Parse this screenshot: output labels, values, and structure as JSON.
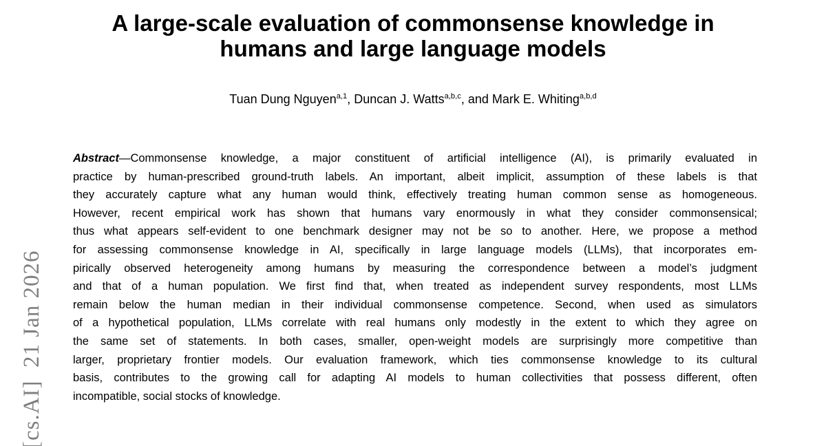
{
  "page": {
    "background_color": "#ffffff",
    "text_color": "#000000"
  },
  "watermark": {
    "text": "[cs.AI]  21 Jan 2026",
    "color": "#7f7f7f"
  },
  "title": {
    "line1": "A large-scale evaluation of commonsense knowledge in",
    "line2": "humans and large language models"
  },
  "authors": [
    {
      "name": "Tuan Dung Nguyen",
      "sup": "a,1",
      "sep": ", "
    },
    {
      "name": "Duncan J. Watts",
      "sup": "a,b,c",
      "sep": ", and "
    },
    {
      "name": "Mark E. Whiting",
      "sup": "a,b,d",
      "sep": ""
    }
  ],
  "abstract": {
    "label": "Abstract",
    "line1_rest": "—Commonsense knowledge, a major constituent of artificial intelligence (AI), is primarily evaluated in",
    "lines": [
      "practice by human-prescribed ground-truth labels. An important, albeit implicit, assumption of these labels is that",
      "they accurately capture what any human would think, effectively treating human common sense as homogeneous.",
      "However, recent empirical work has shown that humans vary enormously in what they consider commonsensical;",
      "thus what appears self-evident to one benchmark designer may not be so to another. Here, we propose a method",
      "for assessing commonsense knowledge in AI, specifically in large language models (LLMs), that incorporates em-",
      "pirically observed heterogeneity among humans by measuring the correspondence between a model’s judgment",
      "and that of a human population. We first find that, when treated as independent survey respondents, most LLMs",
      "remain below the human median in their individual commonsense competence. Second, when used as simulators",
      "of a hypothetical population, LLMs correlate with real humans only modestly in the extent to which they agree on",
      "the same set of statements. In both cases, smaller, open-weight models are surprisingly more competitive than",
      "larger, proprietary frontier models. Our evaluation framework, which ties commonsense knowledge to its cultural",
      "basis, contributes to the growing call for adapting AI models to human collectivities that possess different, often",
      "incompatible, social stocks of knowledge."
    ]
  }
}
